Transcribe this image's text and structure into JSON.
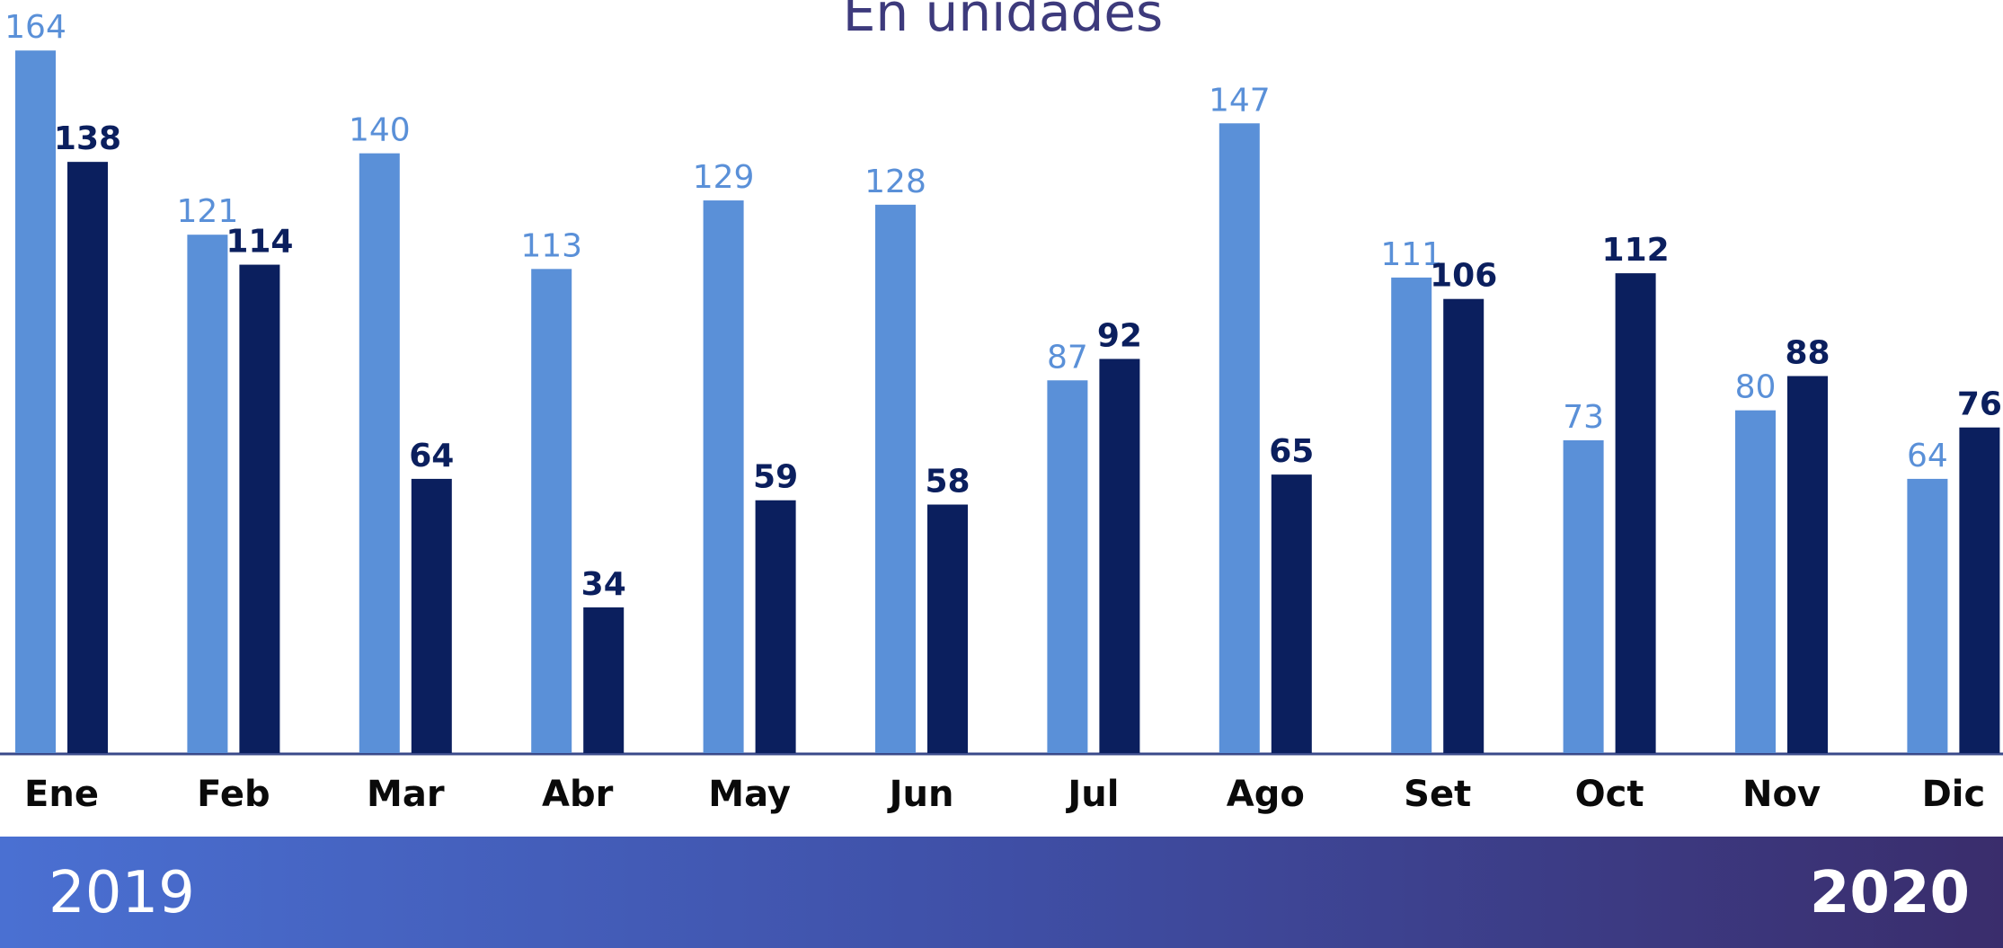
{
  "chart_data": {
    "type": "bar",
    "title": "En unidades",
    "categories": [
      "Ene",
      "Feb",
      "Mar",
      "Abr",
      "May",
      "Jun",
      "Jul",
      "Ago",
      "Set",
      "Oct",
      "Nov",
      "Dic"
    ],
    "series": [
      {
        "name": "2019",
        "color": "#5a90d8",
        "values": [
          164,
          121,
          140,
          113,
          129,
          128,
          87,
          147,
          111,
          73,
          80,
          64
        ]
      },
      {
        "name": "2020",
        "color": "#0b1f5e",
        "values": [
          138,
          114,
          64,
          34,
          59,
          58,
          92,
          65,
          106,
          112,
          88,
          76
        ]
      }
    ]
  }
}
